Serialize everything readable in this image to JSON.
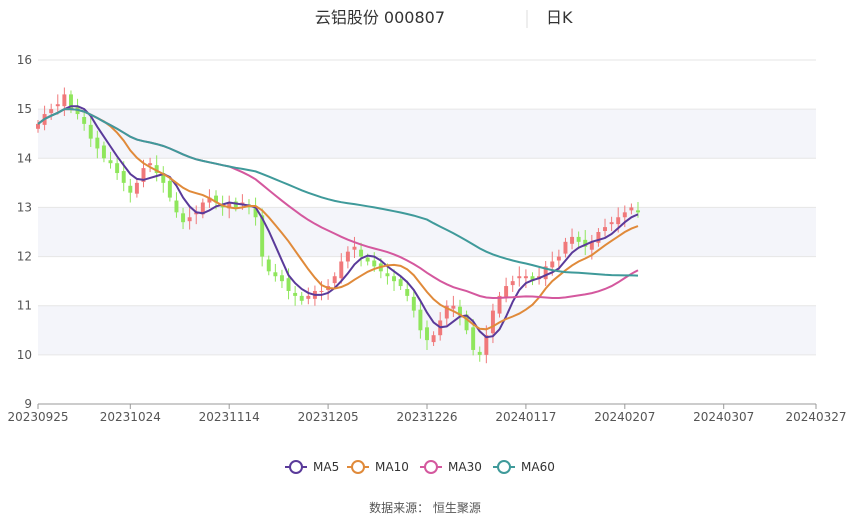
{
  "title": {
    "name": "云铝股份 000807",
    "period": "日K"
  },
  "source": "数据来源： 恒生聚源",
  "colors": {
    "up": "#f0787a",
    "down": "#8fe65c",
    "MA5": "#5a3a9a",
    "MA10": "#e08a3a",
    "MA30": "#d4589e",
    "MA60": "#3f9a9a",
    "band": "#f4f5fa",
    "grid": "#e6e6e6"
  },
  "chart_data": {
    "type": "candlestick",
    "ylim": [
      9,
      16
    ],
    "yticks": [
      9,
      10,
      11,
      12,
      13,
      14,
      15,
      16
    ],
    "xticks": [
      {
        "label": "20230925",
        "idx": 0
      },
      {
        "label": "20231024",
        "idx": 14
      },
      {
        "label": "20231114",
        "idx": 29
      },
      {
        "label": "20231205",
        "idx": 44
      },
      {
        "label": "20231226",
        "idx": 59
      },
      {
        "label": "20240117",
        "idx": 74
      },
      {
        "label": "20240207",
        "idx": 89
      },
      {
        "label": "20240307",
        "idx": 104
      },
      {
        "label": "20240327",
        "idx": 118
      }
    ],
    "legend": [
      "MA5",
      "MA10",
      "MA30",
      "MA60"
    ],
    "closes": [
      14.7,
      14.9,
      15.0,
      15.1,
      15.3,
      15.0,
      14.9,
      14.7,
      14.4,
      14.2,
      14.0,
      13.9,
      13.7,
      13.5,
      13.3,
      13.5,
      13.8,
      13.9,
      13.7,
      13.5,
      13.2,
      12.9,
      12.7,
      12.8,
      12.9,
      13.1,
      13.2,
      13.1,
      13.0,
      13.1,
      13.0,
      13.1,
      13.0,
      12.8,
      12.0,
      11.7,
      11.6,
      11.5,
      11.3,
      11.2,
      11.1,
      11.2,
      11.3,
      11.3,
      11.4,
      11.6,
      11.9,
      12.1,
      12.2,
      12.0,
      11.9,
      11.8,
      11.7,
      11.6,
      11.5,
      11.4,
      11.2,
      10.9,
      10.5,
      10.3,
      10.4,
      10.7,
      11.0,
      11.0,
      10.8,
      10.5,
      10.1,
      10.0,
      10.4,
      10.9,
      11.2,
      11.4,
      11.5,
      11.6,
      11.6,
      11.5,
      11.6,
      11.8,
      11.9,
      12.0,
      12.3,
      12.4,
      12.3,
      12.2,
      12.3,
      12.5,
      12.6,
      12.7,
      12.8,
      12.9,
      13.0,
      12.9
    ]
  },
  "axis": {
    "tick_labels": [
      "9",
      "10",
      "11",
      "12",
      "13",
      "14",
      "15",
      "16"
    ]
  }
}
